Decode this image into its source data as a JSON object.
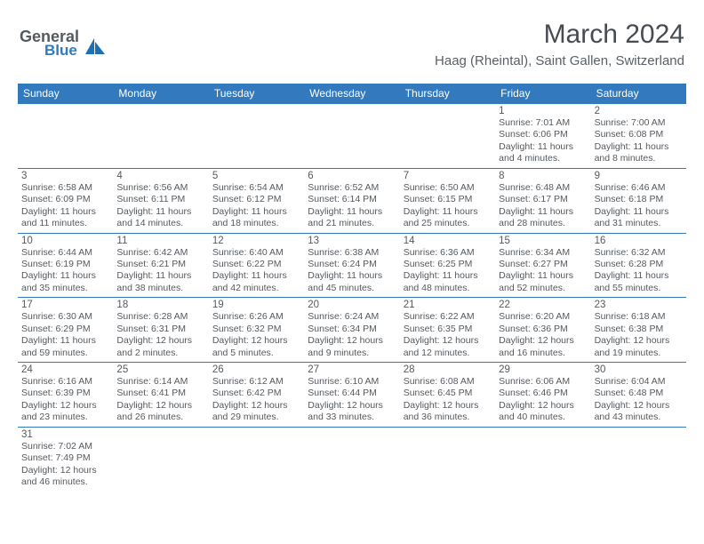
{
  "colors": {
    "header_bg": "#3279bd",
    "header_text": "#ffffff",
    "body_text": "#555a5f",
    "rule": "#3279bd",
    "page_bg": "#ffffff"
  },
  "logo": {
    "word1": "General",
    "word2": "Blue"
  },
  "title": {
    "month": "March 2024",
    "location": "Haag (Rheintal), Saint Gallen, Switzerland"
  },
  "weekdays": [
    "Sunday",
    "Monday",
    "Tuesday",
    "Wednesday",
    "Thursday",
    "Friday",
    "Saturday"
  ],
  "grid": [
    [
      null,
      null,
      null,
      null,
      null,
      {
        "n": "1",
        "sr": "Sunrise: 7:01 AM",
        "ss": "Sunset: 6:06 PM",
        "d1": "Daylight: 11 hours",
        "d2": "and 4 minutes."
      },
      {
        "n": "2",
        "sr": "Sunrise: 7:00 AM",
        "ss": "Sunset: 6:08 PM",
        "d1": "Daylight: 11 hours",
        "d2": "and 8 minutes."
      }
    ],
    [
      {
        "n": "3",
        "sr": "Sunrise: 6:58 AM",
        "ss": "Sunset: 6:09 PM",
        "d1": "Daylight: 11 hours",
        "d2": "and 11 minutes."
      },
      {
        "n": "4",
        "sr": "Sunrise: 6:56 AM",
        "ss": "Sunset: 6:11 PM",
        "d1": "Daylight: 11 hours",
        "d2": "and 14 minutes."
      },
      {
        "n": "5",
        "sr": "Sunrise: 6:54 AM",
        "ss": "Sunset: 6:12 PM",
        "d1": "Daylight: 11 hours",
        "d2": "and 18 minutes."
      },
      {
        "n": "6",
        "sr": "Sunrise: 6:52 AM",
        "ss": "Sunset: 6:14 PM",
        "d1": "Daylight: 11 hours",
        "d2": "and 21 minutes."
      },
      {
        "n": "7",
        "sr": "Sunrise: 6:50 AM",
        "ss": "Sunset: 6:15 PM",
        "d1": "Daylight: 11 hours",
        "d2": "and 25 minutes."
      },
      {
        "n": "8",
        "sr": "Sunrise: 6:48 AM",
        "ss": "Sunset: 6:17 PM",
        "d1": "Daylight: 11 hours",
        "d2": "and 28 minutes."
      },
      {
        "n": "9",
        "sr": "Sunrise: 6:46 AM",
        "ss": "Sunset: 6:18 PM",
        "d1": "Daylight: 11 hours",
        "d2": "and 31 minutes."
      }
    ],
    [
      {
        "n": "10",
        "sr": "Sunrise: 6:44 AM",
        "ss": "Sunset: 6:19 PM",
        "d1": "Daylight: 11 hours",
        "d2": "and 35 minutes."
      },
      {
        "n": "11",
        "sr": "Sunrise: 6:42 AM",
        "ss": "Sunset: 6:21 PM",
        "d1": "Daylight: 11 hours",
        "d2": "and 38 minutes."
      },
      {
        "n": "12",
        "sr": "Sunrise: 6:40 AM",
        "ss": "Sunset: 6:22 PM",
        "d1": "Daylight: 11 hours",
        "d2": "and 42 minutes."
      },
      {
        "n": "13",
        "sr": "Sunrise: 6:38 AM",
        "ss": "Sunset: 6:24 PM",
        "d1": "Daylight: 11 hours",
        "d2": "and 45 minutes."
      },
      {
        "n": "14",
        "sr": "Sunrise: 6:36 AM",
        "ss": "Sunset: 6:25 PM",
        "d1": "Daylight: 11 hours",
        "d2": "and 48 minutes."
      },
      {
        "n": "15",
        "sr": "Sunrise: 6:34 AM",
        "ss": "Sunset: 6:27 PM",
        "d1": "Daylight: 11 hours",
        "d2": "and 52 minutes."
      },
      {
        "n": "16",
        "sr": "Sunrise: 6:32 AM",
        "ss": "Sunset: 6:28 PM",
        "d1": "Daylight: 11 hours",
        "d2": "and 55 minutes."
      }
    ],
    [
      {
        "n": "17",
        "sr": "Sunrise: 6:30 AM",
        "ss": "Sunset: 6:29 PM",
        "d1": "Daylight: 11 hours",
        "d2": "and 59 minutes."
      },
      {
        "n": "18",
        "sr": "Sunrise: 6:28 AM",
        "ss": "Sunset: 6:31 PM",
        "d1": "Daylight: 12 hours",
        "d2": "and 2 minutes."
      },
      {
        "n": "19",
        "sr": "Sunrise: 6:26 AM",
        "ss": "Sunset: 6:32 PM",
        "d1": "Daylight: 12 hours",
        "d2": "and 5 minutes."
      },
      {
        "n": "20",
        "sr": "Sunrise: 6:24 AM",
        "ss": "Sunset: 6:34 PM",
        "d1": "Daylight: 12 hours",
        "d2": "and 9 minutes."
      },
      {
        "n": "21",
        "sr": "Sunrise: 6:22 AM",
        "ss": "Sunset: 6:35 PM",
        "d1": "Daylight: 12 hours",
        "d2": "and 12 minutes."
      },
      {
        "n": "22",
        "sr": "Sunrise: 6:20 AM",
        "ss": "Sunset: 6:36 PM",
        "d1": "Daylight: 12 hours",
        "d2": "and 16 minutes."
      },
      {
        "n": "23",
        "sr": "Sunrise: 6:18 AM",
        "ss": "Sunset: 6:38 PM",
        "d1": "Daylight: 12 hours",
        "d2": "and 19 minutes."
      }
    ],
    [
      {
        "n": "24",
        "sr": "Sunrise: 6:16 AM",
        "ss": "Sunset: 6:39 PM",
        "d1": "Daylight: 12 hours",
        "d2": "and 23 minutes."
      },
      {
        "n": "25",
        "sr": "Sunrise: 6:14 AM",
        "ss": "Sunset: 6:41 PM",
        "d1": "Daylight: 12 hours",
        "d2": "and 26 minutes."
      },
      {
        "n": "26",
        "sr": "Sunrise: 6:12 AM",
        "ss": "Sunset: 6:42 PM",
        "d1": "Daylight: 12 hours",
        "d2": "and 29 minutes."
      },
      {
        "n": "27",
        "sr": "Sunrise: 6:10 AM",
        "ss": "Sunset: 6:44 PM",
        "d1": "Daylight: 12 hours",
        "d2": "and 33 minutes."
      },
      {
        "n": "28",
        "sr": "Sunrise: 6:08 AM",
        "ss": "Sunset: 6:45 PM",
        "d1": "Daylight: 12 hours",
        "d2": "and 36 minutes."
      },
      {
        "n": "29",
        "sr": "Sunrise: 6:06 AM",
        "ss": "Sunset: 6:46 PM",
        "d1": "Daylight: 12 hours",
        "d2": "and 40 minutes."
      },
      {
        "n": "30",
        "sr": "Sunrise: 6:04 AM",
        "ss": "Sunset: 6:48 PM",
        "d1": "Daylight: 12 hours",
        "d2": "and 43 minutes."
      }
    ],
    [
      {
        "n": "31",
        "sr": "Sunrise: 7:02 AM",
        "ss": "Sunset: 7:49 PM",
        "d1": "Daylight: 12 hours",
        "d2": "and 46 minutes."
      },
      null,
      null,
      null,
      null,
      null,
      null
    ]
  ]
}
